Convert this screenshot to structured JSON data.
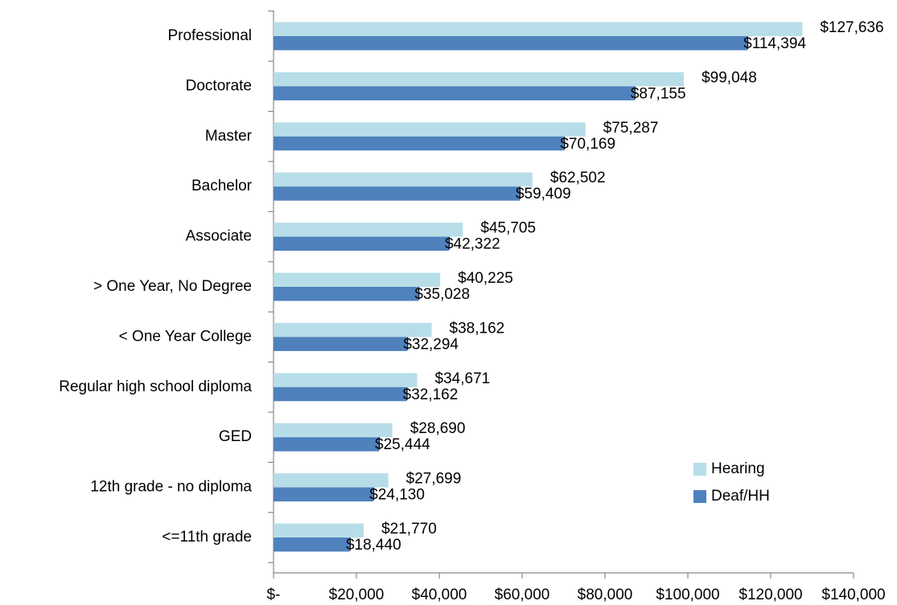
{
  "chart_data": {
    "type": "bar",
    "orientation": "horizontal",
    "categories": [
      "Professional",
      "Doctorate",
      "Master",
      "Bachelor",
      "Associate",
      "> One Year, No Degree",
      "< One Year College",
      "Regular high school diploma",
      "GED",
      "12th grade - no diploma",
      "<=11th grade"
    ],
    "series": [
      {
        "name": "Hearing",
        "color": "#b7dee8",
        "values": [
          127636,
          99048,
          75287,
          62502,
          45705,
          40225,
          38162,
          34671,
          28690,
          27699,
          21770
        ],
        "value_labels": [
          "$127,636",
          "$99,048",
          "$75,287",
          "$62,502",
          "$45,705",
          "$40,225",
          "$38,162",
          "$34,671",
          "$28,690",
          "$27,699",
          "$21,770"
        ]
      },
      {
        "name": "Deaf/HH",
        "color": "#4f81bd",
        "values": [
          114394,
          87155,
          70169,
          59409,
          42322,
          35028,
          32294,
          32162,
          25444,
          24130,
          18440
        ],
        "value_labels": [
          "$114,394",
          "$87,155",
          "$70,169",
          "$59,409",
          "$42,322",
          "$35,028",
          "$32,294",
          "$32,162",
          "$25,444",
          "$24,130",
          "$18,440"
        ]
      }
    ],
    "xlim": [
      0,
      140000
    ],
    "xticks": [
      {
        "value": 0,
        "label": "$-"
      },
      {
        "value": 20000,
        "label": "$20,000"
      },
      {
        "value": 40000,
        "label": "$40,000"
      },
      {
        "value": 60000,
        "label": "$60,000"
      },
      {
        "value": 80000,
        "label": "$80,000"
      },
      {
        "value": 100000,
        "label": "$100,000"
      },
      {
        "value": 120000,
        "label": "$120,000"
      },
      {
        "value": 140000,
        "label": "$140,000"
      }
    ],
    "legend": "lower right"
  }
}
